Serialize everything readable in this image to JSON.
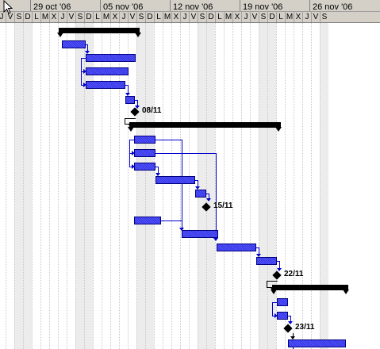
{
  "timescale": {
    "weeks": [
      "29 oct '06",
      "05 nov '06",
      "12 nov '06",
      "19 nov '06",
      "26 nov '06"
    ],
    "days": [
      "J",
      "V",
      "S",
      "D",
      "L",
      "M",
      "X",
      "J",
      "V",
      "S",
      "D",
      "L",
      "M",
      "X",
      "J",
      "V",
      "S",
      "D",
      "L",
      "M",
      "X",
      "J",
      "V",
      "S",
      "D",
      "L",
      "M",
      "X",
      "J",
      "V",
      "S",
      "D",
      "L",
      "M",
      "X",
      "J",
      "V",
      "S"
    ]
  },
  "milestones": [
    {
      "label": "08/11"
    },
    {
      "label": "15/11"
    },
    {
      "label": "22/11"
    },
    {
      "label": "23/11"
    }
  ],
  "colors": {
    "task_fill": "#3333dd",
    "task_border": "#00007f",
    "link": "#0000cc",
    "summary": "#000000",
    "header_bg": "#d4d0c8",
    "weekend_shade": "#ececec"
  },
  "icons": {
    "cursor": "mouse-pointer-icon"
  }
}
